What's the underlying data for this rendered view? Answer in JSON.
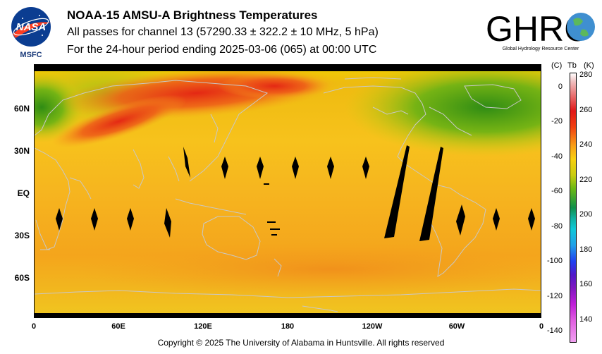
{
  "header": {
    "title": "NOAA-15 AMSU-A Brightness Temperatures",
    "line2": "All passes for channel 13 (57290.33 ± 322.2 ± 10 MHz, 5 hPa)",
    "line3": "For the 24-hour period ending 2025-03-06 (065) at 00:00 UTC"
  },
  "logos": {
    "nasa_text": "NASA",
    "nasa_subtext": "MSFC",
    "ghrc_text": "GHRC",
    "ghrc_subtext": "Global Hydrology Resource Center"
  },
  "map": {
    "lat_labels": [
      "60N",
      "30N",
      "EQ",
      "30S",
      "60S"
    ],
    "lon_labels": [
      "0",
      "60E",
      "120E",
      "180",
      "120W",
      "60W",
      "0"
    ],
    "colors": {
      "warm_band": "#e83a1a",
      "cold_region": "#3a9a18",
      "background": "#f5b020",
      "coastline": "#c8c8c8",
      "gaps": "#000000"
    }
  },
  "colorbar": {
    "unit_c": "(C)",
    "unit_tb": "Tb",
    "unit_k": "(K)",
    "kelvin_ticks": [
      "280",
      "260",
      "240",
      "220",
      "200",
      "180",
      "160",
      "140"
    ],
    "celsius_ticks": [
      "0",
      "-20",
      "-40",
      "-60",
      "-80",
      "-100",
      "-120",
      "-140"
    ]
  },
  "footer": {
    "copyright": "Copyright © 2025 The University of Alabama in Huntsville.  All rights reserved"
  }
}
